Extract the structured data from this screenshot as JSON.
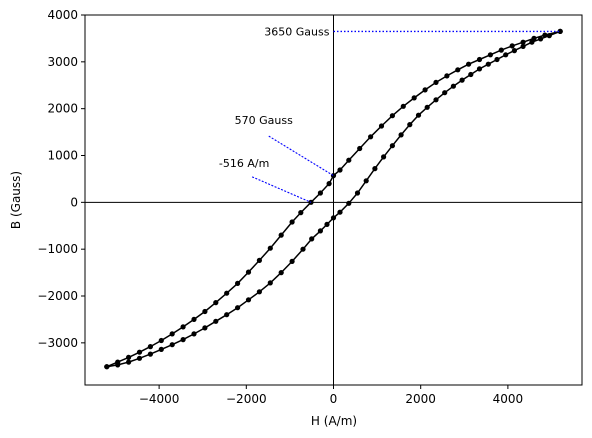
{
  "chart_data": {
    "type": "line",
    "xlabel": "H (A/m)",
    "ylabel": "B (Gauss)",
    "xlim": [
      -5700,
      5700
    ],
    "ylim": [
      -3900,
      4000
    ],
    "xticks": [
      -4000,
      -2000,
      0,
      2000,
      4000
    ],
    "yticks": [
      -3000,
      -2000,
      -1000,
      0,
      1000,
      2000,
      3000,
      4000
    ],
    "grid": false,
    "line_color": "#000000",
    "annotation_color": "#0000ff",
    "series": [
      {
        "points": [
          [
            5200,
            3650
          ],
          [
            4950,
            3560
          ],
          [
            4750,
            3490
          ],
          [
            4550,
            3420
          ],
          [
            4350,
            3330
          ],
          [
            4150,
            3240
          ],
          [
            3950,
            3150
          ],
          [
            3750,
            3050
          ],
          [
            3550,
            2950
          ],
          [
            3350,
            2850
          ],
          [
            3150,
            2730
          ],
          [
            2950,
            2610
          ],
          [
            2750,
            2480
          ],
          [
            2550,
            2340
          ],
          [
            2350,
            2190
          ],
          [
            2150,
            2030
          ],
          [
            1950,
            1860
          ],
          [
            1750,
            1660
          ],
          [
            1550,
            1440
          ],
          [
            1350,
            1210
          ],
          [
            1150,
            970
          ],
          [
            950,
            720
          ],
          [
            750,
            460
          ],
          [
            550,
            200
          ],
          [
            350,
            -20
          ],
          [
            150,
            -210
          ],
          [
            0,
            -330
          ],
          [
            -150,
            -470
          ],
          [
            -300,
            -610
          ],
          [
            -500,
            -780
          ],
          [
            -700,
            -1000
          ],
          [
            -950,
            -1260
          ],
          [
            -1200,
            -1500
          ],
          [
            -1450,
            -1720
          ],
          [
            -1700,
            -1910
          ],
          [
            -1950,
            -2080
          ],
          [
            -2200,
            -2250
          ],
          [
            -2450,
            -2400
          ],
          [
            -2700,
            -2540
          ],
          [
            -2950,
            -2680
          ],
          [
            -3200,
            -2810
          ],
          [
            -3450,
            -2930
          ],
          [
            -3700,
            -3040
          ],
          [
            -3950,
            -3140
          ],
          [
            -4200,
            -3240
          ],
          [
            -4450,
            -3330
          ],
          [
            -4700,
            -3410
          ],
          [
            -4950,
            -3470
          ],
          [
            -5200,
            -3510
          ]
        ]
      },
      {
        "points": [
          [
            -5200,
            -3510
          ],
          [
            -4950,
            -3410
          ],
          [
            -4700,
            -3310
          ],
          [
            -4450,
            -3200
          ],
          [
            -4200,
            -3080
          ],
          [
            -3950,
            -2950
          ],
          [
            -3700,
            -2810
          ],
          [
            -3450,
            -2660
          ],
          [
            -3200,
            -2500
          ],
          [
            -2950,
            -2330
          ],
          [
            -2700,
            -2140
          ],
          [
            -2450,
            -1940
          ],
          [
            -2200,
            -1730
          ],
          [
            -1950,
            -1490
          ],
          [
            -1700,
            -1240
          ],
          [
            -1450,
            -980
          ],
          [
            -1200,
            -700
          ],
          [
            -950,
            -420
          ],
          [
            -750,
            -220
          ],
          [
            -516,
            0
          ],
          [
            -300,
            200
          ],
          [
            -100,
            400
          ],
          [
            0,
            570
          ],
          [
            150,
            690
          ],
          [
            350,
            900
          ],
          [
            600,
            1150
          ],
          [
            850,
            1400
          ],
          [
            1100,
            1630
          ],
          [
            1350,
            1850
          ],
          [
            1600,
            2050
          ],
          [
            1850,
            2230
          ],
          [
            2100,
            2400
          ],
          [
            2350,
            2560
          ],
          [
            2600,
            2700
          ],
          [
            2850,
            2830
          ],
          [
            3100,
            2950
          ],
          [
            3350,
            3050
          ],
          [
            3600,
            3150
          ],
          [
            3850,
            3250
          ],
          [
            4100,
            3340
          ],
          [
            4350,
            3420
          ],
          [
            4600,
            3500
          ],
          [
            4850,
            3570
          ],
          [
            5200,
            3650
          ]
        ]
      }
    ],
    "annotations": [
      {
        "text": "3650 Gauss",
        "x": 0,
        "y": 3650,
        "target_x": 5200,
        "target_y": 3650
      },
      {
        "text": "570 Gauss",
        "x": -1600,
        "y": 1500,
        "target_x": 0,
        "target_y": 570
      },
      {
        "text": "-516 A/m",
        "x": -2050,
        "y": 630,
        "target_x": -516,
        "target_y": 0
      }
    ]
  }
}
